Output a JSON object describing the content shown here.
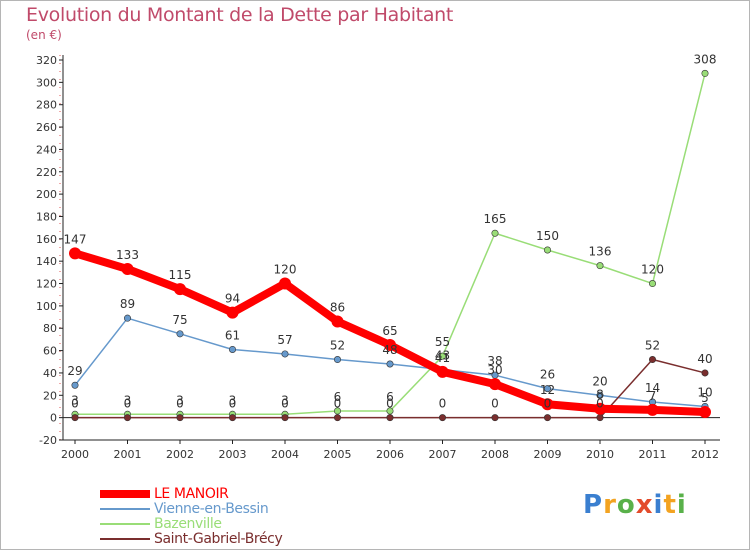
{
  "chart_data": {
    "type": "line",
    "title": "Evolution du Montant de la Dette par Habitant",
    "subtitle": "(en €)",
    "ylim": [
      -20,
      320
    ],
    "yticks": [
      -20,
      0,
      20,
      40,
      60,
      80,
      100,
      120,
      140,
      160,
      180,
      200,
      220,
      240,
      260,
      280,
      300,
      320
    ],
    "x": [
      "2000",
      "2001",
      "2002",
      "2003",
      "2004",
      "2005",
      "2006",
      "2007",
      "2008",
      "2009",
      "2010",
      "2011",
      "2012"
    ],
    "grid": false,
    "legend_position": "bottom-left",
    "series": [
      {
        "name": "LE MANOIR",
        "color": "#ff0000",
        "values": [
          147,
          133,
          115,
          94,
          120,
          86,
          65,
          41,
          30,
          12,
          8,
          7,
          5
        ],
        "labels": [
          "147",
          "133",
          "115",
          "94",
          "120",
          "86",
          "65",
          "41",
          "30",
          "12",
          "8",
          "7",
          "5"
        ]
      },
      {
        "name": "Vienne-en-Bessin",
        "color": "#6699cc",
        "values": [
          29,
          89,
          75,
          61,
          57,
          52,
          48,
          43,
          38,
          26,
          20,
          14,
          10
        ],
        "labels": [
          "29",
          "89",
          "75",
          "61",
          "57",
          "52",
          "48",
          "43",
          "38",
          "26",
          "20",
          "14",
          "10"
        ]
      },
      {
        "name": "Bazenville",
        "color": "#99dd77",
        "values": [
          3,
          3,
          3,
          3,
          3,
          6,
          6,
          55,
          165,
          150,
          136,
          120,
          308
        ],
        "labels": [
          "3",
          "3",
          "3",
          "3",
          "3",
          "6",
          "6",
          "55",
          "165",
          "150",
          "136",
          "120",
          "308"
        ]
      },
      {
        "name": "Saint-Gabriel-Brécy",
        "color": "#7a2e2e",
        "values": [
          0,
          0,
          0,
          0,
          0,
          0,
          0,
          0,
          0,
          0,
          0,
          52,
          40
        ],
        "labels": [
          "0",
          "0",
          "0",
          "0",
          "0",
          "0",
          "0",
          "0",
          "0",
          "0",
          "0",
          "52",
          "40"
        ]
      }
    ]
  },
  "brand": {
    "logo_text": "Proxiti"
  }
}
